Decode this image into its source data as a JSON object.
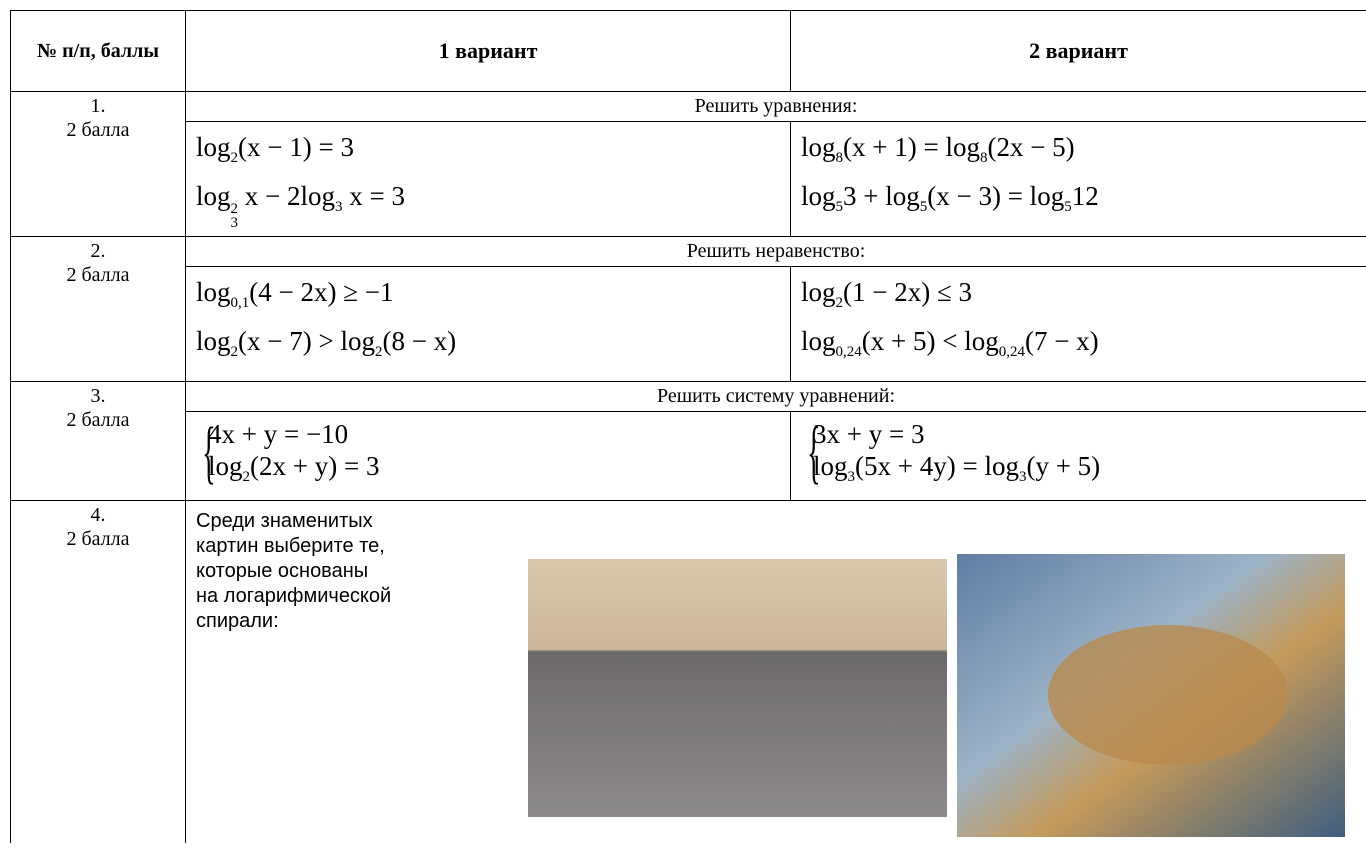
{
  "header": {
    "col1": "№ п/п, баллы",
    "col2": "1 вариант",
    "col3": "2 вариант"
  },
  "tasks": [
    {
      "number": "1.",
      "points": "2 балла",
      "instruction": "Решить уравнения:",
      "variant1": [
        [
          "log",
          {
            "sub": "2"
          },
          "(x − 1) = 3"
        ],
        [
          "log",
          {
            "sup": "2",
            "sub": "3"
          },
          " x − 2log",
          {
            "sub": "3"
          },
          " x = 3"
        ]
      ],
      "variant2": [
        [
          "log",
          {
            "sub": "8"
          },
          "(x + 1) = log",
          {
            "sub": "8"
          },
          "(2x − 5)"
        ],
        [
          "log",
          {
            "sub": "5"
          },
          "3 + log",
          {
            "sub": "5"
          },
          "(x − 3) = log",
          {
            "sub": "5"
          },
          "12"
        ]
      ]
    },
    {
      "number": "2.",
      "points": "2 балла",
      "instruction": "Решить неравенство:",
      "variant1": [
        [
          "log",
          {
            "sub": "0,1"
          },
          "(4 − 2x) ≥ −1"
        ],
        [
          "log",
          {
            "sub": "2"
          },
          "(x − 7) > log",
          {
            "sub": "2"
          },
          "(8 − x)"
        ]
      ],
      "variant2": [
        [
          "log",
          {
            "sub": "2"
          },
          "(1 − 2x) ≤ 3"
        ],
        [
          "log",
          {
            "sub": "0,24"
          },
          "(x + 5) < log",
          {
            "sub": "0,24"
          },
          "(7 − x)"
        ]
      ]
    },
    {
      "number": "3.",
      "points": "2 балла",
      "instruction": "Решить систему уравнений:",
      "variant1": [
        [
          "4x + y = −10"
        ],
        [
          "log",
          {
            "sub": "2"
          },
          "(2x + y) = 3"
        ]
      ],
      "variant2": [
        [
          "3x + y = 3"
        ],
        [
          "log",
          {
            "sub": "3"
          },
          "(5x + 4y) = log",
          {
            "sub": "3"
          },
          "(y + 5)"
        ]
      ]
    },
    {
      "number": "4.",
      "points": "2 балла",
      "text": [
        "Среди знаменитых",
        "картин выберите те,",
        "которые основаны",
        "на логарифмической",
        "спирали:"
      ]
    }
  ]
}
